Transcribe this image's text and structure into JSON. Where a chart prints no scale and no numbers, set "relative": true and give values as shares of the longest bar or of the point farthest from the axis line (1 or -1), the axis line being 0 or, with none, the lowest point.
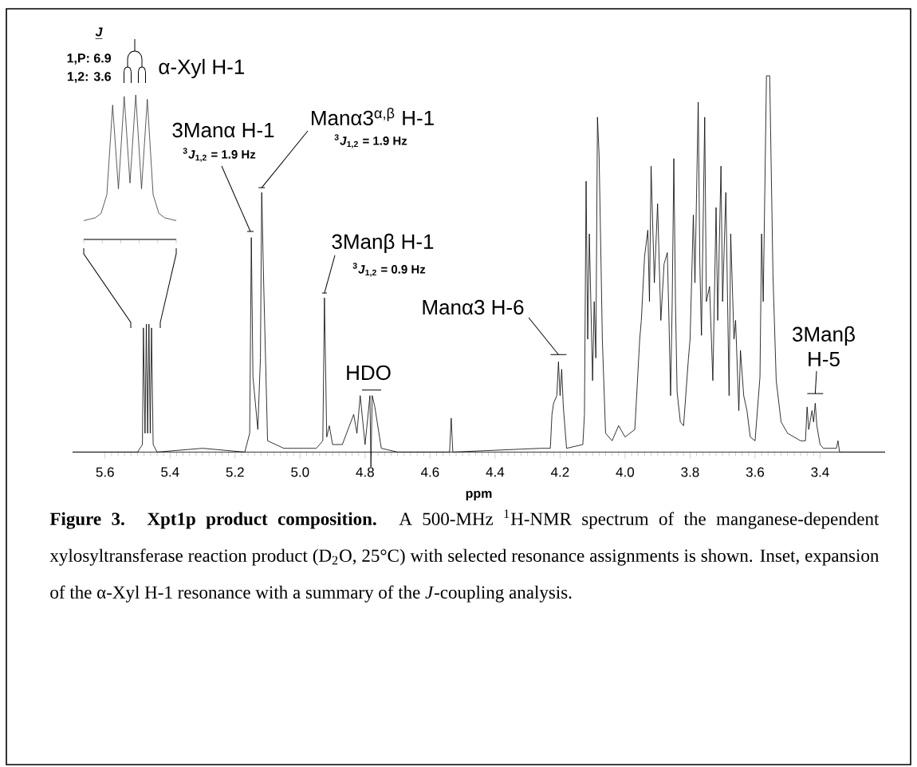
{
  "chart_data": [
    {
      "type": "line",
      "relative": true,
      "xlabel": "ppm",
      "xlim": [
        5.7,
        3.2
      ],
      "xticks": [
        5.6,
        5.4,
        5.2,
        {
          "value": 5,
          "label": "5.0"
        },
        4.8,
        4.6,
        4.4,
        4.2,
        {
          "value": 4,
          "label": "4.0"
        },
        3.8,
        3.6,
        3.4
      ],
      "x": [
        5.7,
        5.5,
        5.485,
        5.482,
        5.477,
        5.473,
        5.469,
        5.465,
        5.461,
        5.457,
        5.452,
        5.44,
        5.3,
        5.17,
        5.155,
        5.15,
        5.145,
        5.13,
        5.122,
        5.118,
        5.112,
        5.1,
        5.05,
        4.95,
        4.93,
        4.925,
        4.918,
        4.91,
        4.9,
        4.87,
        4.835,
        4.825,
        4.815,
        4.8,
        4.785,
        4.782,
        4.778,
        4.77,
        4.75,
        4.7,
        4.54,
        4.535,
        4.53,
        4.26,
        4.23,
        4.225,
        4.22,
        4.21,
        4.205,
        4.2,
        4.195,
        4.19,
        4.18,
        4.13,
        4.125,
        4.12,
        4.115,
        4.11,
        4.1,
        4.095,
        4.09,
        4.085,
        4.08,
        4.075,
        4.07,
        4.06,
        4.04,
        4.02,
        4.0,
        3.97,
        3.955,
        3.95,
        3.94,
        3.93,
        3.925,
        3.92,
        3.91,
        3.9,
        3.89,
        3.88,
        3.87,
        3.865,
        3.86,
        3.855,
        3.85,
        3.845,
        3.84,
        3.83,
        3.82,
        3.805,
        3.8,
        3.79,
        3.785,
        3.775,
        3.77,
        3.765,
        3.755,
        3.75,
        3.74,
        3.73,
        3.72,
        3.715,
        3.705,
        3.7,
        3.69,
        3.68,
        3.675,
        3.665,
        3.66,
        3.65,
        3.645,
        3.635,
        3.625,
        3.615,
        3.6,
        3.585,
        3.58,
        3.575,
        3.565,
        3.555,
        3.545,
        3.535,
        3.52,
        3.5,
        3.46,
        3.445,
        3.44,
        3.435,
        3.425,
        3.42,
        3.415,
        3.41,
        3.4,
        3.39,
        3.35,
        3.345,
        3.34,
        3.2
      ],
      "series": [
        {
          "color": "#000000",
          "values": [
            0,
            0,
            0.02,
            0.33,
            0.05,
            0.34,
            0.05,
            0.34,
            0.05,
            0.33,
            0.02,
            0,
            0.01,
            0,
            0.05,
            0.57,
            0.2,
            0.06,
            0.25,
            0.69,
            0.45,
            0.03,
            0.01,
            0.01,
            0.03,
            0.41,
            0.04,
            0.07,
            0.02,
            0.02,
            0.1,
            0.05,
            0.15,
            0.02,
            0.15,
            -0.04,
            0.15,
            0.12,
            0.01,
            0,
            0,
            0.09,
            0,
            0.01,
            0.01,
            0.1,
            0.13,
            0.15,
            0.24,
            0.15,
            0.22,
            0.12,
            0.01,
            0.02,
            0.1,
            0.72,
            0.3,
            0.58,
            0.19,
            0.4,
            0.25,
            0.89,
            0.79,
            0.55,
            0.3,
            0.05,
            0.03,
            0.07,
            0.04,
            0.06,
            0.3,
            0.35,
            0.52,
            0.59,
            0.4,
            0.76,
            0.45,
            0.66,
            0.35,
            0.5,
            0.53,
            0.35,
            0.15,
            0.4,
            0.78,
            0.4,
            0.16,
            0.08,
            0.07,
            0.25,
            0.3,
            0.63,
            0.45,
            0.93,
            0.5,
            0.31,
            0.89,
            0.4,
            0.44,
            0.19,
            0.65,
            0.35,
            0.76,
            0.4,
            0.69,
            0.15,
            0.58,
            0.3,
            0.35,
            0.11,
            0.27,
            0.15,
            0.11,
            0.04,
            0.03,
            0.2,
            0.58,
            0.4,
            1,
            1,
            0.47,
            0.19,
            0.08,
            0.05,
            0.03,
            0.03,
            0.12,
            0.06,
            0.11,
            0.08,
            0.13,
            0.07,
            0.02,
            0.01,
            0.01,
            0.03,
            0,
            0
          ]
        }
      ],
      "annotations": [
        "3Manα H-1",
        "$^{3}$*J*$_{1,2}$ = 1.9 Hz",
        {
          "text": "Manα3$^{α,β}$ H-1",
          "x": 5.118,
          "y": 0.69
        },
        "$^{3}$*J*$_{1,2}$ = 1.9 Hz",
        {
          "text": "3Manβ H-1",
          "x": 4.925,
          "y": 0.41
        },
        "$^{3}$*J*$_{1,2}$ = 0.9 Hz",
        {
          "text": "HDO",
          "x": 4.78,
          "y": 0.15
        },
        {
          "text": "Manα3 H-6",
          "x": 4.205,
          "y": 0.24
        },
        {
          "text": "3Manβ H-5",
          "x": 3.415,
          "y": 0.13
        },
        "**Figure 3. Xpt1p product composition.** A 500-MHz $^{1}$H-NMR spectrum of the manganese-dependent xylosyltransferase reaction product (D$_{2}$O, 25°C) with selected resonance assignments is shown. Inset, expansion of the α-Xyl H-1 resonance with a summary of the *J*-coupling analysis."
      ]
    },
    {
      "type": "line",
      "relative": true,
      "categories": [
        null,
        null,
        null,
        null,
        null,
        null,
        null,
        null,
        null,
        null,
        null,
        null,
        null,
        null,
        null,
        null,
        null
      ],
      "series": [
        {
          "color": "#333333",
          "values": [
            0.13,
            0.14,
            0.15,
            0.18,
            0.31,
            0.93,
            0.35,
            0.99,
            0.39,
            1,
            0.35,
            0.97,
            0.31,
            0.18,
            0.15,
            0.14,
            0.13
          ]
        }
      ],
      "annotations": [
        "J",
        "1,P: 6.9",
        "1,2: 3.6",
        "α-Xyl H-1"
      ]
    }
  ]
}
